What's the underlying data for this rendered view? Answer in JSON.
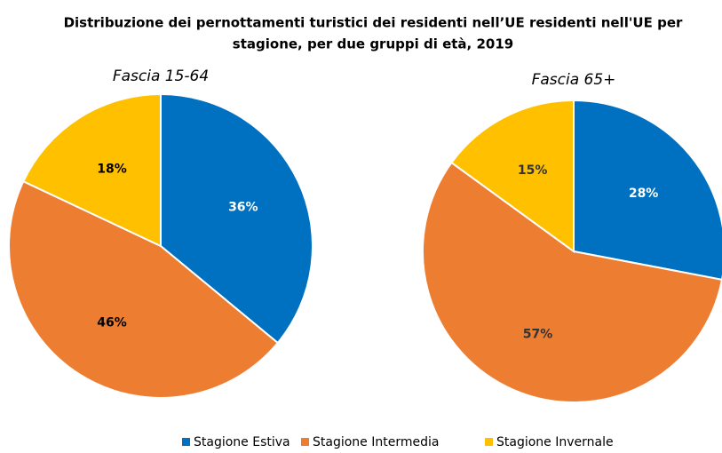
{
  "title": [
    "Distribuzione dei pernottamenti turistici dei residenti nell’UE residenti nell'UE per",
    "stagione, per due gruppi di età, 2019"
  ],
  "chart_data": [
    {
      "type": "pie",
      "title": "Fascia 15-64",
      "categories": [
        "Stagione Estiva",
        "Stagione Intermedia",
        "Stagione Invernale"
      ],
      "values": [
        36,
        46,
        18
      ],
      "value_labels": [
        "36%",
        "46%",
        "18%"
      ],
      "colors": [
        "#0070c0",
        "#ed7d31",
        "#ffc000"
      ]
    },
    {
      "type": "pie",
      "title": "Fascia 65+",
      "categories": [
        "Stagione Estiva",
        "Stagione Intermedia",
        "Stagione Invernale"
      ],
      "values": [
        28,
        57,
        15
      ],
      "value_labels": [
        "28%",
        "57%",
        "15%"
      ],
      "colors": [
        "#0070c0",
        "#ed7d31",
        "#ffc000"
      ]
    }
  ]
}
